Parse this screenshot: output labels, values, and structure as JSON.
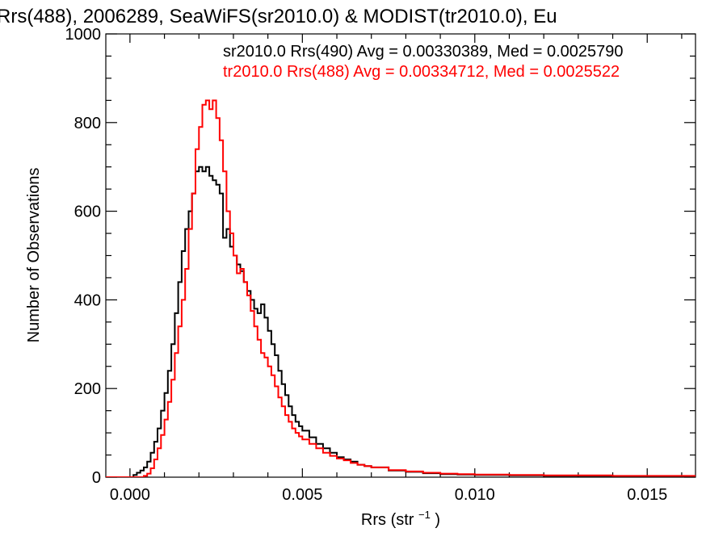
{
  "chart_data": {
    "type": "line",
    "title": "Rrs(488), 2006289, SeaWiFS(sr2010.0) & MODIST(tr2010.0), Eu",
    "xlabel": "Rrs (str",
    "xlabel_sup": "−1",
    "xlabel_end": ")",
    "ylabel": "Number of Observations",
    "xlim": [
      -0.0007,
      0.0164
    ],
    "ylim": [
      0,
      1000
    ],
    "x_ticks": [
      0.0,
      0.005,
      0.01,
      0.015
    ],
    "x_tick_labels": [
      "0.000",
      "0.005",
      "0.010",
      "0.015"
    ],
    "y_ticks": [
      0,
      200,
      400,
      600,
      800,
      1000
    ],
    "y_tick_labels": [
      "0",
      "200",
      "400",
      "600",
      "800",
      "1000"
    ],
    "grid": false,
    "legend_position": "top-right",
    "series": [
      {
        "name": "sr2010.0 Rrs(490) Avg = 0.00330389, Med = 0.0025790",
        "color": "#000000",
        "points": [
          [
            -0.0007,
            0
          ],
          [
            0.0,
            0
          ],
          [
            0.0001,
            5
          ],
          [
            0.0002,
            10
          ],
          [
            0.0003,
            15
          ],
          [
            0.0004,
            22
          ],
          [
            0.0005,
            35
          ],
          [
            0.0006,
            55
          ],
          [
            0.0007,
            80
          ],
          [
            0.0008,
            110
          ],
          [
            0.0009,
            150
          ],
          [
            0.001,
            190
          ],
          [
            0.0011,
            240
          ],
          [
            0.0012,
            300
          ],
          [
            0.0013,
            370
          ],
          [
            0.0014,
            440
          ],
          [
            0.0015,
            510
          ],
          [
            0.0016,
            560
          ],
          [
            0.0017,
            600
          ],
          [
            0.0018,
            640
          ],
          [
            0.0019,
            690
          ],
          [
            0.002,
            700
          ],
          [
            0.0021,
            690
          ],
          [
            0.0022,
            700
          ],
          [
            0.0023,
            680
          ],
          [
            0.0024,
            670
          ],
          [
            0.0025,
            660
          ],
          [
            0.0026,
            640
          ],
          [
            0.0027,
            540
          ],
          [
            0.0028,
            560
          ],
          [
            0.0029,
            520
          ],
          [
            0.003,
            500
          ],
          [
            0.0031,
            480
          ],
          [
            0.0032,
            465
          ],
          [
            0.0033,
            440
          ],
          [
            0.0034,
            420
          ],
          [
            0.0035,
            400
          ],
          [
            0.0036,
            380
          ],
          [
            0.0037,
            370
          ],
          [
            0.0038,
            390
          ],
          [
            0.0039,
            360
          ],
          [
            0.004,
            330
          ],
          [
            0.0041,
            300
          ],
          [
            0.0042,
            275
          ],
          [
            0.0043,
            240
          ],
          [
            0.0044,
            210
          ],
          [
            0.0045,
            185
          ],
          [
            0.0046,
            160
          ],
          [
            0.0047,
            140
          ],
          [
            0.0048,
            125
          ],
          [
            0.0049,
            115
          ],
          [
            0.005,
            105
          ],
          [
            0.0052,
            90
          ],
          [
            0.0054,
            75
          ],
          [
            0.0056,
            65
          ],
          [
            0.0058,
            55
          ],
          [
            0.006,
            45
          ],
          [
            0.0062,
            40
          ],
          [
            0.0064,
            35
          ],
          [
            0.0066,
            28
          ],
          [
            0.0068,
            25
          ],
          [
            0.007,
            22
          ],
          [
            0.0075,
            15
          ],
          [
            0.008,
            12
          ],
          [
            0.0085,
            9
          ],
          [
            0.009,
            7
          ],
          [
            0.0095,
            6
          ],
          [
            0.01,
            5
          ],
          [
            0.011,
            4
          ],
          [
            0.012,
            3
          ],
          [
            0.013,
            3
          ],
          [
            0.014,
            2
          ],
          [
            0.015,
            2
          ],
          [
            0.0164,
            1
          ]
        ]
      },
      {
        "name": "tr2010.0 Rrs(488) Avg = 0.00334712, Med = 0.0025522",
        "color": "#ff0000",
        "points": [
          [
            -0.0007,
            0
          ],
          [
            0.0,
            0
          ],
          [
            0.0002,
            0
          ],
          [
            0.0004,
            3
          ],
          [
            0.0005,
            8
          ],
          [
            0.0006,
            20
          ],
          [
            0.0007,
            40
          ],
          [
            0.0008,
            65
          ],
          [
            0.0009,
            95
          ],
          [
            0.001,
            130
          ],
          [
            0.0011,
            170
          ],
          [
            0.0012,
            220
          ],
          [
            0.0013,
            280
          ],
          [
            0.0014,
            340
          ],
          [
            0.0015,
            400
          ],
          [
            0.0016,
            470
          ],
          [
            0.0017,
            560
          ],
          [
            0.0018,
            640
          ],
          [
            0.0019,
            740
          ],
          [
            0.002,
            790
          ],
          [
            0.0021,
            840
          ],
          [
            0.0022,
            850
          ],
          [
            0.0023,
            830
          ],
          [
            0.0024,
            850
          ],
          [
            0.0025,
            810
          ],
          [
            0.0026,
            760
          ],
          [
            0.0027,
            690
          ],
          [
            0.0028,
            600
          ],
          [
            0.0029,
            550
          ],
          [
            0.003,
            500
          ],
          [
            0.0031,
            460
          ],
          [
            0.0032,
            470
          ],
          [
            0.0033,
            440
          ],
          [
            0.0034,
            410
          ],
          [
            0.0035,
            375
          ],
          [
            0.0036,
            340
          ],
          [
            0.0037,
            310
          ],
          [
            0.0038,
            280
          ],
          [
            0.0039,
            270
          ],
          [
            0.004,
            250
          ],
          [
            0.0041,
            230
          ],
          [
            0.0042,
            205
          ],
          [
            0.0043,
            180
          ],
          [
            0.0044,
            160
          ],
          [
            0.0045,
            140
          ],
          [
            0.0046,
            125
          ],
          [
            0.0047,
            110
          ],
          [
            0.0048,
            100
          ],
          [
            0.0049,
            92
          ],
          [
            0.005,
            85
          ],
          [
            0.0052,
            75
          ],
          [
            0.0054,
            65
          ],
          [
            0.0056,
            55
          ],
          [
            0.0058,
            48
          ],
          [
            0.006,
            42
          ],
          [
            0.0062,
            38
          ],
          [
            0.0064,
            32
          ],
          [
            0.0066,
            28
          ],
          [
            0.0068,
            25
          ],
          [
            0.007,
            22
          ],
          [
            0.0075,
            16
          ],
          [
            0.008,
            13
          ],
          [
            0.0085,
            10
          ],
          [
            0.009,
            8
          ],
          [
            0.0095,
            7
          ],
          [
            0.01,
            6
          ],
          [
            0.011,
            5
          ],
          [
            0.012,
            4
          ],
          [
            0.013,
            4
          ],
          [
            0.014,
            3
          ],
          [
            0.015,
            3
          ],
          [
            0.0164,
            2
          ]
        ]
      }
    ]
  }
}
